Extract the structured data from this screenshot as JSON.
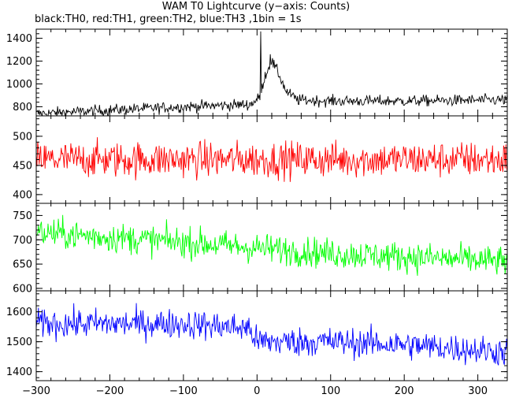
{
  "title": "WAM T0 Lightcurve (y−axis: Counts)",
  "subtitle": "black:TH0, red:TH1, green:TH2, blue:TH3 ,1bin = 1s",
  "chart_data": {
    "type": "line",
    "xlim": [
      -300,
      340
    ],
    "x_ticks": [
      -300,
      -200,
      -100,
      0,
      100,
      200,
      300
    ],
    "x_tick_labels": [
      "−300",
      "−200",
      "−100",
      "0",
      "100",
      "200",
      "300"
    ],
    "panels": [
      {
        "name": "TH0",
        "color": "#000000",
        "ylim": [
          720,
          1480
        ],
        "y_ticks": [
          800,
          1000,
          1200,
          1400
        ],
        "y_tick_labels": [
          "800",
          "1000",
          "1200",
          "1400"
        ],
        "noise": 35,
        "baseline": [
          [
            -300,
            740
          ],
          [
            -200,
            770
          ],
          [
            -100,
            800
          ],
          [
            -10,
            820
          ],
          [
            0,
            860
          ],
          [
            5,
            900
          ],
          [
            10,
            1060
          ],
          [
            20,
            1200
          ],
          [
            30,
            1080
          ],
          [
            40,
            930
          ],
          [
            55,
            860
          ],
          [
            100,
            850
          ],
          [
            200,
            850
          ],
          [
            340,
            860
          ]
        ],
        "peaks": [
          [
            5,
            1460
          ],
          [
            18,
            1260
          ]
        ]
      },
      {
        "name": "TH1",
        "color": "#ff0000",
        "ylim": [
          385,
          535
        ],
        "y_ticks": [
          400,
          450,
          500
        ],
        "y_tick_labels": [
          "400",
          "450",
          "500"
        ],
        "noise": 22,
        "baseline": [
          [
            -300,
            460
          ],
          [
            0,
            460
          ],
          [
            340,
            460
          ]
        ],
        "peaks": []
      },
      {
        "name": "TH2",
        "color": "#00ff00",
        "ylim": [
          595,
          775
        ],
        "y_ticks": [
          600,
          650,
          700,
          750
        ],
        "y_tick_labels": [
          "600",
          "650",
          "700",
          "750"
        ],
        "noise": 22,
        "baseline": [
          [
            -300,
            715
          ],
          [
            -200,
            705
          ],
          [
            -100,
            695
          ],
          [
            0,
            683
          ],
          [
            100,
            672
          ],
          [
            200,
            665
          ],
          [
            340,
            655
          ]
        ],
        "peaks": []
      },
      {
        "name": "TH3",
        "color": "#0000ff",
        "ylim": [
          1370,
          1670
        ],
        "y_ticks": [
          1400,
          1500,
          1600
        ],
        "y_tick_labels": [
          "1400",
          "1500",
          "1600"
        ],
        "noise": 35,
        "baseline": [
          [
            -300,
            1560
          ],
          [
            -100,
            1560
          ],
          [
            -10,
            1545
          ],
          [
            0,
            1500
          ],
          [
            100,
            1500
          ],
          [
            200,
            1490
          ],
          [
            340,
            1465
          ]
        ],
        "peaks": []
      }
    ]
  }
}
